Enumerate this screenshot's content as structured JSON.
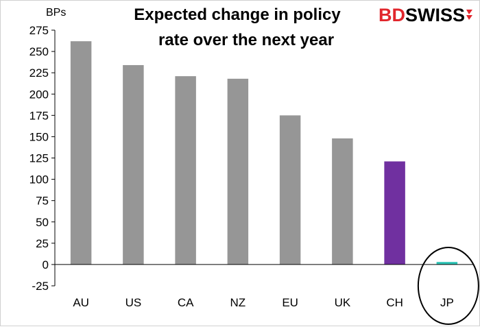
{
  "chart_data": {
    "type": "bar",
    "title_lines": [
      "Expected change in policy",
      "rate over the next year"
    ],
    "ylabel": "BPs",
    "xlabel": "",
    "categories": [
      "AU",
      "US",
      "CA",
      "NZ",
      "EU",
      "UK",
      "CH",
      "JP"
    ],
    "values": [
      262,
      234,
      221,
      218,
      175,
      148,
      121,
      3
    ],
    "bar_colors": [
      "#969696",
      "#969696",
      "#969696",
      "#969696",
      "#969696",
      "#969696",
      "#7030a0",
      "#2ec4b6"
    ],
    "ylim": [
      -25,
      275
    ],
    "yticks": [
      -25,
      0,
      25,
      50,
      75,
      100,
      125,
      150,
      175,
      200,
      225,
      250,
      275
    ],
    "grid": false,
    "highlight": {
      "category": "JP",
      "shape": "ellipse"
    }
  },
  "logo": {
    "part1": "BD",
    "part2": "SWISS",
    "part1_color": "#e1262c",
    "part2_color": "#000000"
  },
  "colors": {
    "axis": "#000000"
  }
}
